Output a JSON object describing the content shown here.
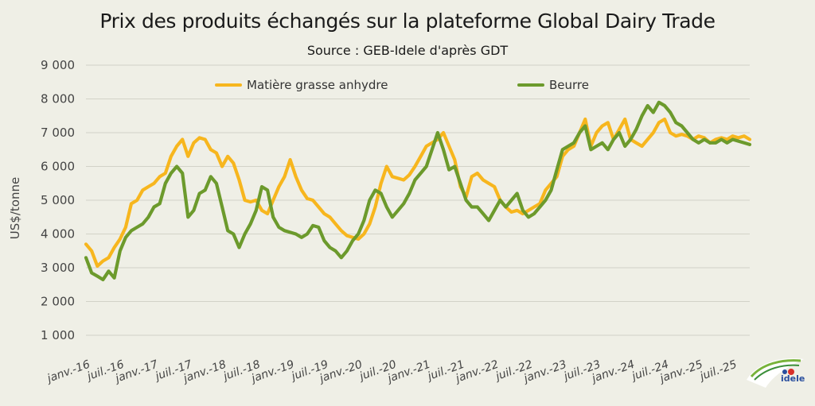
{
  "title": "Prix des produits échangés sur la plateforme Global Dairy Trade",
  "subtitle": "Source : GEB-Idele d'après GDT",
  "legend": [
    {
      "label": "Matière grasse anhydre",
      "color": "#f7b61e"
    },
    {
      "label": "Beurre",
      "color": "#6c9a2c"
    }
  ],
  "logo_text": "idele",
  "chart_data": {
    "type": "line",
    "title": "Prix des produits échangés sur la plateforme Global Dairy Trade",
    "ylabel": "US$/tonne",
    "xlabel": "",
    "ylim": [
      1000,
      9000
    ],
    "yticks": [
      1000,
      2000,
      3000,
      4000,
      5000,
      6000,
      7000,
      8000,
      9000
    ],
    "ytick_labels": [
      "1 000",
      "2 000",
      "3 000",
      "4 000",
      "5 000",
      "6 000",
      "7 000",
      "8 000",
      "9 000"
    ],
    "x_range": [
      0,
      117
    ],
    "xtick_labels": [
      "janv.-16",
      "juil.-16",
      "janv.-17",
      "juil.-17",
      "janv.-18",
      "juil.-18",
      "janv.-19",
      "juil.-19",
      "janv.-20",
      "juil.-20",
      "janv.-21",
      "juil.-21",
      "janv.-22",
      "juil.-22",
      "janv.-23",
      "juil.-23",
      "janv.-24",
      "juil.-24",
      "janv.-25",
      "juil.-25"
    ],
    "series": [
      {
        "name": "Matière grasse anhydre",
        "color": "#f7b61e",
        "x": [
          0,
          1,
          2,
          3,
          4,
          5,
          6,
          7,
          8,
          9,
          10,
          11,
          12,
          13,
          14,
          15,
          16,
          17,
          18,
          19,
          20,
          21,
          22,
          23,
          24,
          25,
          26,
          27,
          28,
          29,
          30,
          31,
          32,
          33,
          34,
          35,
          36,
          37,
          38,
          39,
          40,
          41,
          42,
          43,
          44,
          45,
          46,
          47,
          48,
          49,
          50,
          51,
          52,
          53,
          54,
          55,
          56,
          57,
          58,
          59,
          60,
          61,
          62,
          63,
          64,
          65,
          66,
          67,
          68,
          69,
          70,
          71,
          72,
          73,
          74,
          75,
          76,
          77,
          78,
          79,
          80,
          81,
          82,
          83,
          84,
          85,
          86,
          87,
          88,
          89,
          90,
          91,
          92,
          93,
          94,
          95,
          96,
          97,
          98,
          99,
          100,
          101,
          102,
          103,
          104,
          105,
          106,
          107,
          108,
          109,
          110,
          111,
          112,
          113,
          114,
          115,
          116,
          117
        ],
        "values": [
          3700,
          3500,
          3050,
          3200,
          3300,
          3600,
          3850,
          4200,
          4900,
          5000,
          5300,
          5400,
          5500,
          5700,
          5800,
          6300,
          6600,
          6800,
          6300,
          6700,
          6850,
          6800,
          6500,
          6400,
          6000,
          6300,
          6100,
          5600,
          5000,
          4950,
          5000,
          4700,
          4600,
          5000,
          5400,
          5700,
          6200,
          5700,
          5300,
          5050,
          5000,
          4800,
          4600,
          4500,
          4300,
          4100,
          3950,
          3900,
          3850,
          4000,
          4300,
          4800,
          5500,
          6000,
          5700,
          5650,
          5600,
          5750,
          6000,
          6300,
          6600,
          6700,
          6800,
          7000,
          6600,
          6200,
          5400,
          5100,
          5700,
          5800,
          5600,
          5500,
          5400,
          5000,
          4800,
          4650,
          4700,
          4600,
          4700,
          4800,
          4900,
          5300,
          5500,
          5700,
          6300,
          6500,
          6600,
          7000,
          7400,
          6600,
          7000,
          7200,
          7300,
          6800,
          7100,
          7400,
          6800,
          6700,
          6600,
          6800,
          7000,
          7300,
          7400,
          7000,
          6900,
          6950,
          6900,
          6800,
          6900,
          6850,
          6700,
          6800,
          6850,
          6800,
          6900,
          6850,
          6900,
          6800
        ]
      },
      {
        "name": "Beurre",
        "color": "#6c9a2c",
        "x": [
          0,
          1,
          2,
          3,
          4,
          5,
          6,
          7,
          8,
          9,
          10,
          11,
          12,
          13,
          14,
          15,
          16,
          17,
          18,
          19,
          20,
          21,
          22,
          23,
          24,
          25,
          26,
          27,
          28,
          29,
          30,
          31,
          32,
          33,
          34,
          35,
          36,
          37,
          38,
          39,
          40,
          41,
          42,
          43,
          44,
          45,
          46,
          47,
          48,
          49,
          50,
          51,
          52,
          53,
          54,
          55,
          56,
          57,
          58,
          59,
          60,
          61,
          62,
          63,
          64,
          65,
          66,
          67,
          68,
          69,
          70,
          71,
          72,
          73,
          74,
          75,
          76,
          77,
          78,
          79,
          80,
          81,
          82,
          83,
          84,
          85,
          86,
          87,
          88,
          89,
          90,
          91,
          92,
          93,
          94,
          95,
          96,
          97,
          98,
          99,
          100,
          101,
          102,
          103,
          104,
          105,
          106,
          107,
          108,
          109,
          110,
          111,
          112,
          113,
          114,
          115,
          116,
          117
        ],
        "values": [
          3300,
          2850,
          2750,
          2650,
          2900,
          2700,
          3500,
          3900,
          4100,
          4200,
          4300,
          4500,
          4800,
          4900,
          5500,
          5800,
          6000,
          5800,
          4500,
          4700,
          5200,
          5300,
          5700,
          5500,
          4800,
          4100,
          4000,
          3600,
          4000,
          4300,
          4700,
          5400,
          5300,
          4500,
          4200,
          4100,
          4050,
          4000,
          3900,
          4000,
          4250,
          4200,
          3800,
          3600,
          3500,
          3300,
          3500,
          3800,
          4000,
          4400,
          5000,
          5300,
          5200,
          4800,
          4500,
          4700,
          4900,
          5200,
          5600,
          5800,
          6000,
          6500,
          7000,
          6500,
          5900,
          6000,
          5500,
          5000,
          4800,
          4800,
          4600,
          4400,
          4700,
          5000,
          4800,
          5000,
          5200,
          4700,
          4500,
          4600,
          4800,
          5000,
          5300,
          5900,
          6500,
          6600,
          6700,
          7000,
          7200,
          6500,
          6600,
          6700,
          6500,
          6800,
          7000,
          6600,
          6800,
          7100,
          7500,
          7800,
          7600,
          7900,
          7800,
          7600,
          7300,
          7200,
          7000,
          6800,
          6700,
          6800,
          6700,
          6700,
          6800,
          6700,
          6800,
          6750,
          6700,
          6650
        ]
      }
    ]
  }
}
